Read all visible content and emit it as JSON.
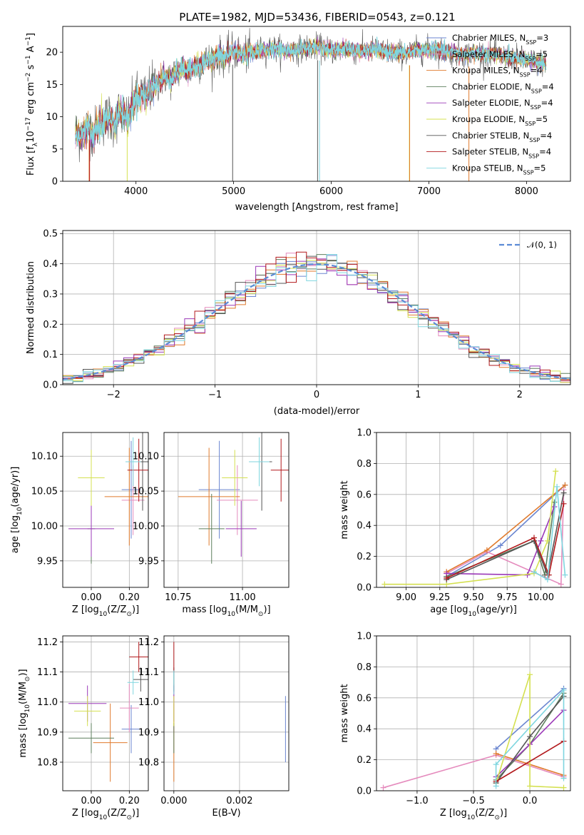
{
  "figure": {
    "title": "PLATE=1982, MJD=53436, FIBERID=0543, z=0.121"
  },
  "model_colors": {
    "Chabrier MILES": "#6b86d0",
    "Salpeter MILES": "#e58bbd",
    "Kroupa MILES": "#e07a2c",
    "Chabrier ELODIE": "#5e7f5e",
    "Salpeter ELODIE": "#9b39b8",
    "Kroupa ELODIE": "#d4e050",
    "Chabrier STELIB": "#555555",
    "Salpeter STELIB": "#b2191c",
    "Kroupa STELIB": "#7fd6df"
  },
  "chart_data": [
    {
      "id": "spectrum",
      "type": "line",
      "title": "PLATE=1982, MJD=53436, FIBERID=0543, z=0.121",
      "xlabel": "wavelength [Angstrom, rest frame]",
      "ylabel": "Flux [f_λ 10^-17 erg cm^-2 s^-1 A^-1]",
      "xlim": [
        3250,
        8450
      ],
      "ylim": [
        0,
        24
      ],
      "xticks": [
        4000,
        5000,
        6000,
        7000,
        8000
      ],
      "yticks": [
        0,
        5,
        10,
        15,
        20
      ],
      "grid": false,
      "legend_position": "top-right",
      "legend": [
        {
          "label": "Chabrier MILES, N",
          "sub": "SSP",
          "value": "=3"
        },
        {
          "label": "Salpeter MILES, N",
          "sub": "SSP",
          "value": "=5"
        },
        {
          "label": "Kroupa MILES, N",
          "sub": "SSP",
          "value": "=4"
        },
        {
          "label": "Chabrier ELODIE, N",
          "sub": "SSP",
          "value": "=4"
        },
        {
          "label": "Salpeter ELODIE, N",
          "sub": "SSP",
          "value": "=4"
        },
        {
          "label": "Kroupa ELODIE, N",
          "sub": "SSP",
          "value": "=5"
        },
        {
          "label": "Chabrier STELIB, N",
          "sub": "SSP",
          "value": "=4"
        },
        {
          "label": "Salpeter STELIB, N",
          "sub": "SSP",
          "value": "=4"
        },
        {
          "label": "Kroupa STELIB, N",
          "sub": "SSP",
          "value": "=5"
        }
      ],
      "data_curve": {
        "x": [
          3380,
          3420,
          3480,
          3520,
          3560,
          3620,
          3680,
          3720,
          3780,
          3830,
          3880,
          3920,
          3960,
          4000,
          4050,
          4100,
          4150,
          4200,
          4250,
          4300,
          4360,
          4420,
          4480,
          4550,
          4620,
          4700,
          4780,
          4850,
          4920,
          5000,
          5080,
          5180,
          5300,
          5420,
          5550,
          5700,
          5850,
          6000,
          6150,
          6300,
          6450,
          6600,
          6750,
          6900,
          7050,
          7200,
          7350,
          7500,
          7650,
          7800,
          7950,
          8100,
          8200
        ],
        "y": [
          7.5,
          7.0,
          7.8,
          8.5,
          7.2,
          8.8,
          9.5,
          10.0,
          9.0,
          10.8,
          10.2,
          9.5,
          11.5,
          12.8,
          13.5,
          13.0,
          14.5,
          14.8,
          15.5,
          16.2,
          15.8,
          17.0,
          17.5,
          17.2,
          18.0,
          18.5,
          18.8,
          19.5,
          19.2,
          20.2,
          19.6,
          19.8,
          20.4,
          20.6,
          20.2,
          20.5,
          20.8,
          20.3,
          20.5,
          20.1,
          20.4,
          20.0,
          19.8,
          20.3,
          20.5,
          20.0,
          19.7,
          19.9,
          19.6,
          19.3,
          18.9,
          18.5,
          18.3
        ]
      }
    },
    {
      "id": "residuals",
      "type": "histogram",
      "xlabel": "(data-model)/error",
      "ylabel": "Normed distribution",
      "xlim": [
        -2.5,
        2.5
      ],
      "ylim": [
        0,
        0.51
      ],
      "xticks": [
        -2,
        -1,
        0,
        1,
        2
      ],
      "yticks": [
        0.0,
        0.1,
        0.2,
        0.3,
        0.4,
        0.5
      ],
      "grid": true,
      "legend_position": "top-right",
      "gaussian_label": "𝒩(0, 1)",
      "bin_width": 0.1
    },
    {
      "id": "age_vs_Z",
      "type": "scatter",
      "xlabel": "Z [log10(Z/Z⊙)]",
      "ylabel": "age  [log10(age/yr)]",
      "xlim": [
        -0.15,
        0.3
      ],
      "ylim": [
        9.912,
        10.134
      ],
      "xticks": [
        0.0,
        0.2
      ],
      "yticks": [
        9.95,
        10.0,
        10.05,
        10.1
      ],
      "grid": true,
      "points": [
        {
          "model": "Chabrier MILES",
          "x": 0.21,
          "y": 10.052,
          "xerr": 0.05,
          "yerr": 0.07
        },
        {
          "model": "Salpeter MILES",
          "x": 0.22,
          "y": 10.037,
          "xerr": 0.06,
          "yerr": 0.05
        },
        {
          "model": "Kroupa MILES",
          "x": 0.2,
          "y": 10.042,
          "xerr": 0.13,
          "yerr": 0.07
        },
        {
          "model": "Chabrier ELODIE",
          "x": 0.0,
          "y": 9.996,
          "xerr": 0.02,
          "yerr": 0.05
        },
        {
          "model": "Salpeter ELODIE",
          "x": 0.0,
          "y": 9.996,
          "xerr": 0.12,
          "yerr": 0.04
        },
        {
          "model": "Kroupa ELODIE",
          "x": 0.0,
          "y": 10.069,
          "xerr": 0.07,
          "yerr": 0.04
        },
        {
          "model": "Chabrier STELIB",
          "x": 0.27,
          "y": 10.092,
          "xerr": 0.05,
          "yerr": 0.07
        },
        {
          "model": "Salpeter STELIB",
          "x": 0.25,
          "y": 10.08,
          "xerr": 0.06,
          "yerr": 0.045
        },
        {
          "model": "Kroupa STELIB",
          "x": 0.22,
          "y": 10.092,
          "xerr": 0.04,
          "yerr": 0.035
        }
      ]
    },
    {
      "id": "age_vs_mass",
      "type": "scatter",
      "xlabel": "mass [log10(M/M⊙)]",
      "ylabel": "",
      "xlim": [
        10.695,
        11.18
      ],
      "ylim": [
        9.912,
        10.134
      ],
      "xticks": [
        10.75,
        11.0
      ],
      "yticks": [
        9.95,
        10.0,
        10.05,
        10.1
      ],
      "grid": true,
      "points": [
        {
          "model": "Chabrier MILES",
          "x": 10.91,
          "y": 10.052,
          "xerr": 0.08,
          "yerr": 0.07
        },
        {
          "model": "Salpeter MILES",
          "x": 10.98,
          "y": 10.037,
          "xerr": 0.08,
          "yerr": 0.05
        },
        {
          "model": "Kroupa MILES",
          "x": 10.87,
          "y": 10.042,
          "xerr": 0.12,
          "yerr": 0.07
        },
        {
          "model": "Chabrier ELODIE",
          "x": 10.88,
          "y": 9.996,
          "xerr": 0.05,
          "yerr": 0.05
        },
        {
          "model": "Salpeter ELODIE",
          "x": 10.995,
          "y": 9.996,
          "xerr": 0.06,
          "yerr": 0.04
        },
        {
          "model": "Kroupa ELODIE",
          "x": 10.97,
          "y": 10.069,
          "xerr": 0.05,
          "yerr": 0.04
        },
        {
          "model": "Chabrier STELIB",
          "x": 11.075,
          "y": 10.092,
          "xerr": 0.04,
          "yerr": 0.07
        },
        {
          "model": "Salpeter STELIB",
          "x": 11.15,
          "y": 10.08,
          "xerr": 0.04,
          "yerr": 0.045
        },
        {
          "model": "Kroupa STELIB",
          "x": 11.065,
          "y": 10.092,
          "xerr": 0.04,
          "yerr": 0.035
        }
      ]
    },
    {
      "id": "weight_vs_age",
      "type": "line",
      "xlabel": "age  [log10(age/yr)]",
      "ylabel": "mass weight",
      "xlim": [
        8.78,
        10.22
      ],
      "ylim": [
        0.0,
        1.0
      ],
      "xticks": [
        9.0,
        9.25,
        9.5,
        9.75,
        10.0
      ],
      "yticks": [
        0.0,
        0.2,
        0.4,
        0.6,
        0.8,
        1.0
      ],
      "grid": true,
      "series": [
        {
          "model": "Chabrier MILES",
          "x": [
            9.3,
            9.7,
            10.18
          ],
          "y": [
            0.07,
            0.27,
            0.66
          ]
        },
        {
          "model": "Salpeter MILES",
          "x": [
            9.3,
            9.6,
            10.15,
            10.17
          ],
          "y": [
            0.09,
            0.23,
            0.02,
            0.63
          ]
        },
        {
          "model": "Kroupa MILES",
          "x": [
            9.3,
            9.6,
            10.18
          ],
          "y": [
            0.1,
            0.24,
            0.66
          ]
        },
        {
          "model": "Chabrier ELODIE",
          "x": [
            9.3,
            9.95,
            10.03,
            10.1
          ],
          "y": [
            0.07,
            0.3,
            0.08,
            0.55
          ]
        },
        {
          "model": "Salpeter ELODIE",
          "x": [
            9.3,
            9.9,
            10.0,
            10.1
          ],
          "y": [
            0.09,
            0.08,
            0.3,
            0.52
          ]
        },
        {
          "model": "Kroupa ELODIE",
          "x": [
            8.84,
            9.3,
            9.95,
            10.05,
            10.11
          ],
          "y": [
            0.02,
            0.02,
            0.09,
            0.3,
            0.75
          ]
        },
        {
          "model": "Chabrier STELIB",
          "x": [
            9.3,
            9.95,
            10.05,
            10.17
          ],
          "y": [
            0.05,
            0.3,
            0.08,
            0.61
          ]
        },
        {
          "model": "Salpeter STELIB",
          "x": [
            9.3,
            9.95,
            10.06,
            10.17
          ],
          "y": [
            0.06,
            0.32,
            0.08,
            0.54
          ]
        },
        {
          "model": "Kroupa STELIB",
          "x": [
            9.95,
            10.05,
            10.12,
            10.18
          ],
          "y": [
            0.1,
            0.05,
            0.65,
            0.08
          ]
        }
      ]
    },
    {
      "id": "mass_vs_Z",
      "type": "scatter",
      "xlabel": "Z [log10(Z/Z⊙)]",
      "ylabel": "mass [log10(M/M⊙)]",
      "xlim": [
        -0.15,
        0.3
      ],
      "ylim": [
        10.705,
        11.22
      ],
      "xticks": [
        0.0,
        0.2
      ],
      "yticks": [
        10.8,
        10.9,
        11.0,
        11.1,
        11.2
      ],
      "grid": true,
      "points": [
        {
          "model": "Chabrier MILES",
          "x": 0.21,
          "y": 10.91,
          "xerr": 0.05,
          "yerr": 0.08
        },
        {
          "model": "Salpeter MILES",
          "x": 0.2,
          "y": 10.98,
          "xerr": 0.05,
          "yerr": 0.08
        },
        {
          "model": "Kroupa MILES",
          "x": 0.1,
          "y": 10.865,
          "xerr": 0.09,
          "yerr": 0.13
        },
        {
          "model": "Chabrier ELODIE",
          "x": 0.0,
          "y": 10.88,
          "xerr": 0.12,
          "yerr": 0.05
        },
        {
          "model": "Salpeter ELODIE",
          "x": -0.02,
          "y": 10.995,
          "xerr": 0.1,
          "yerr": 0.06
        },
        {
          "model": "Kroupa ELODIE",
          "x": -0.02,
          "y": 10.97,
          "xerr": 0.07,
          "yerr": 0.05
        },
        {
          "model": "Chabrier STELIB",
          "x": 0.26,
          "y": 11.075,
          "xerr": 0.04,
          "yerr": 0.04
        },
        {
          "model": "Salpeter STELIB",
          "x": 0.25,
          "y": 11.15,
          "xerr": 0.05,
          "yerr": 0.05
        },
        {
          "model": "Kroupa STELIB",
          "x": 0.22,
          "y": 11.065,
          "xerr": 0.03,
          "yerr": 0.04
        }
      ]
    },
    {
      "id": "mass_vs_ebv",
      "type": "scatter",
      "xlabel": "E(B-V)",
      "ylabel": "",
      "xlim": [
        -0.0003,
        0.0035
      ],
      "ylim": [
        10.705,
        11.22
      ],
      "xticks": [
        0.0,
        0.002
      ],
      "yticks": [
        10.8,
        10.9,
        11.0,
        11.1,
        11.2
      ],
      "grid": true,
      "points": [
        {
          "model": "Chabrier MILES",
          "x": 0.0034,
          "y": 10.91,
          "xerr": 0,
          "yerr": 0.11
        },
        {
          "model": "Salpeter MILES",
          "x": 0.0,
          "y": 10.98,
          "xerr": 0,
          "yerr": 0.08
        },
        {
          "model": "Kroupa MILES",
          "x": 0.0,
          "y": 10.865,
          "xerr": 0,
          "yerr": 0.13
        },
        {
          "model": "Chabrier ELODIE",
          "x": 0.0,
          "y": 10.88,
          "xerr": 0,
          "yerr": 0.05
        },
        {
          "model": "Salpeter ELODIE",
          "x": 0.0,
          "y": 10.995,
          "xerr": 0,
          "yerr": 0.06
        },
        {
          "model": "Kroupa ELODIE",
          "x": 0.0,
          "y": 10.97,
          "xerr": 0,
          "yerr": 0.05
        },
        {
          "model": "Chabrier STELIB",
          "x": 0.0,
          "y": 11.075,
          "xerr": 0,
          "yerr": 0.04
        },
        {
          "model": "Salpeter STELIB",
          "x": 0.0,
          "y": 11.15,
          "xerr": 0,
          "yerr": 0.05
        },
        {
          "model": "Kroupa STELIB",
          "x": 0.0,
          "y": 11.065,
          "xerr": 0,
          "yerr": 0.04
        }
      ]
    },
    {
      "id": "weight_vs_Z",
      "type": "line",
      "xlabel": "Z [log10(Z/Z⊙)]",
      "ylabel": "mass weight",
      "xlim": [
        -1.36,
        0.36
      ],
      "ylim": [
        0.0,
        1.0
      ],
      "xticks": [
        -1.0,
        -0.5,
        0.0
      ],
      "yticks": [
        0.0,
        0.2,
        0.4,
        0.6,
        0.8,
        1.0
      ],
      "grid": true,
      "series": [
        {
          "model": "Chabrier MILES",
          "x": [
            -0.3,
            0.3
          ],
          "y": [
            0.27,
            0.66
          ]
        },
        {
          "model": "Salpeter MILES",
          "x": [
            -1.3,
            -0.3,
            0.3
          ],
          "y": [
            0.02,
            0.23,
            0.09
          ]
        },
        {
          "model": "Kroupa MILES",
          "x": [
            -0.3,
            0.3
          ],
          "y": [
            0.24,
            0.1
          ]
        },
        {
          "model": "Chabrier ELODIE",
          "x": [
            -0.3,
            0.0,
            0.3
          ],
          "y": [
            0.07,
            0.3,
            0.63
          ]
        },
        {
          "model": "Salpeter ELODIE",
          "x": [
            -0.3,
            0.0,
            0.3
          ],
          "y": [
            0.09,
            0.3,
            0.52
          ]
        },
        {
          "model": "Kroupa ELODIE",
          "x": [
            -0.3,
            0.0,
            0.0,
            0.3
          ],
          "y": [
            0.05,
            0.75,
            0.03,
            0.02
          ]
        },
        {
          "model": "Chabrier STELIB",
          "x": [
            -0.3,
            0.0,
            0.3
          ],
          "y": [
            0.05,
            0.35,
            0.61
          ]
        },
        {
          "model": "Salpeter STELIB",
          "x": [
            -0.3,
            0.3
          ],
          "y": [
            0.06,
            0.32
          ]
        },
        {
          "model": "Kroupa STELIB",
          "x": [
            -0.3,
            -0.3,
            0.3,
            0.3
          ],
          "y": [
            0.03,
            0.17,
            0.65,
            0.08
          ]
        }
      ]
    }
  ]
}
